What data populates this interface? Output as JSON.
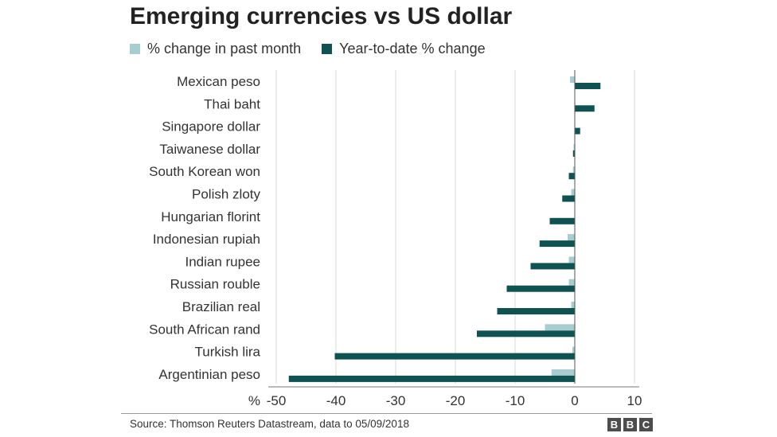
{
  "chart_data": {
    "type": "bar",
    "orientation": "horizontal",
    "title": "Emerging currencies vs US dollar",
    "unit_label": "%",
    "categories": [
      "Mexican peso",
      "Thai baht",
      "Singapore dollar",
      "Taiwanese dollar",
      "South Korean won",
      "Polish zloty",
      "Hungarian florint",
      "Indonesian rupiah",
      "Indian rupee",
      "Russian rouble",
      "Brazilian real",
      "South African rand",
      "Turkish lira",
      "Argentinian peso"
    ],
    "series": [
      {
        "name": "% change in past month",
        "color": "#a8cdd0",
        "values": [
          -0.8,
          0,
          0,
          -0.2,
          -0.3,
          -0.6,
          0,
          -1.2,
          -1.0,
          -1.0,
          -0.6,
          -5.0,
          -0.4,
          -3.9
        ]
      },
      {
        "name": "Year-to-date % change",
        "color": "#0e5352",
        "values": [
          4.3,
          3.3,
          0.9,
          -0.3,
          -1.0,
          -2.1,
          -4.2,
          -5.9,
          -7.4,
          -11.4,
          -13.0,
          -16.4,
          -40.2,
          -47.9
        ]
      }
    ],
    "xlim": [
      -50,
      10
    ],
    "xticks": [
      -50,
      -40,
      -30,
      -20,
      -10,
      0,
      10
    ],
    "grid": true,
    "legend_position": "top-left",
    "source": "Source: Thomson Reuters Datastream, data to 05/09/2018",
    "logo": [
      "B",
      "B",
      "C"
    ]
  }
}
